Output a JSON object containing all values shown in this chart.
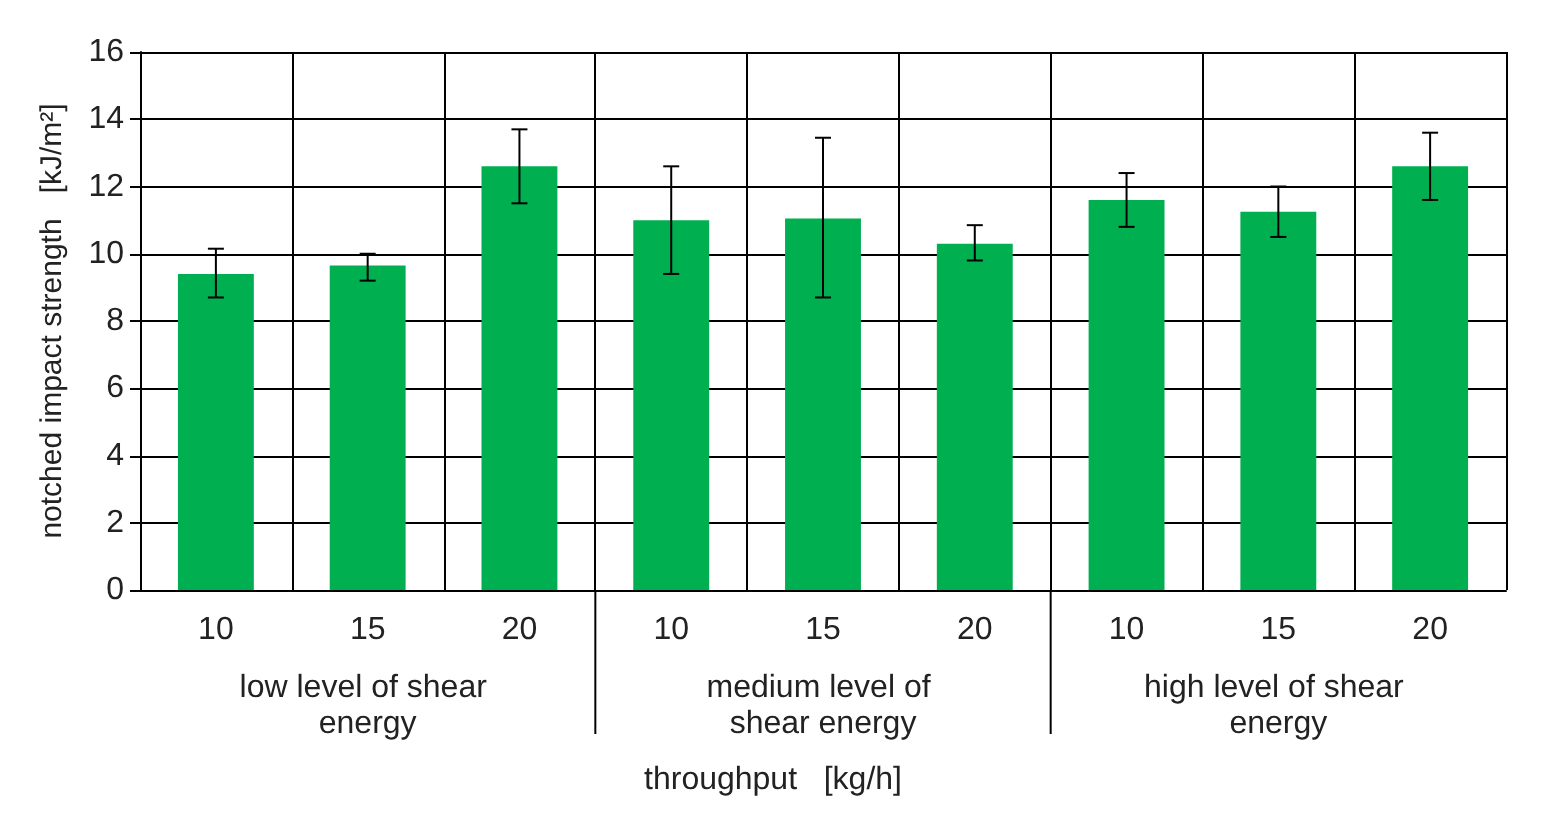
{
  "chart_data": {
    "type": "bar",
    "xlabel": "throughput   [kg/h]",
    "ylabel": "notched impact strength   [kJ/m²]",
    "categories": [
      "10",
      "15",
      "20",
      "10",
      "15",
      "20",
      "10",
      "15",
      "20"
    ],
    "values": [
      9.4,
      9.65,
      12.6,
      11.0,
      11.05,
      10.3,
      11.6,
      11.25,
      12.6
    ],
    "errors": [
      [
        8.7,
        10.15
      ],
      [
        9.2,
        10.0
      ],
      [
        11.5,
        13.7
      ],
      [
        9.4,
        12.6
      ],
      [
        8.7,
        13.45
      ],
      [
        9.8,
        10.85
      ],
      [
        10.8,
        12.4
      ],
      [
        10.5,
        12.0
      ],
      [
        11.6,
        13.6
      ]
    ],
    "color": "#00b050",
    "ylim": [
      0,
      16
    ],
    "yticks": [
      0,
      2,
      4,
      6,
      8,
      10,
      12,
      14,
      16
    ],
    "grid": true,
    "annotations": [
      "low level of shear energy",
      "medium level of shear energy",
      "high level of shear energy"
    ]
  }
}
